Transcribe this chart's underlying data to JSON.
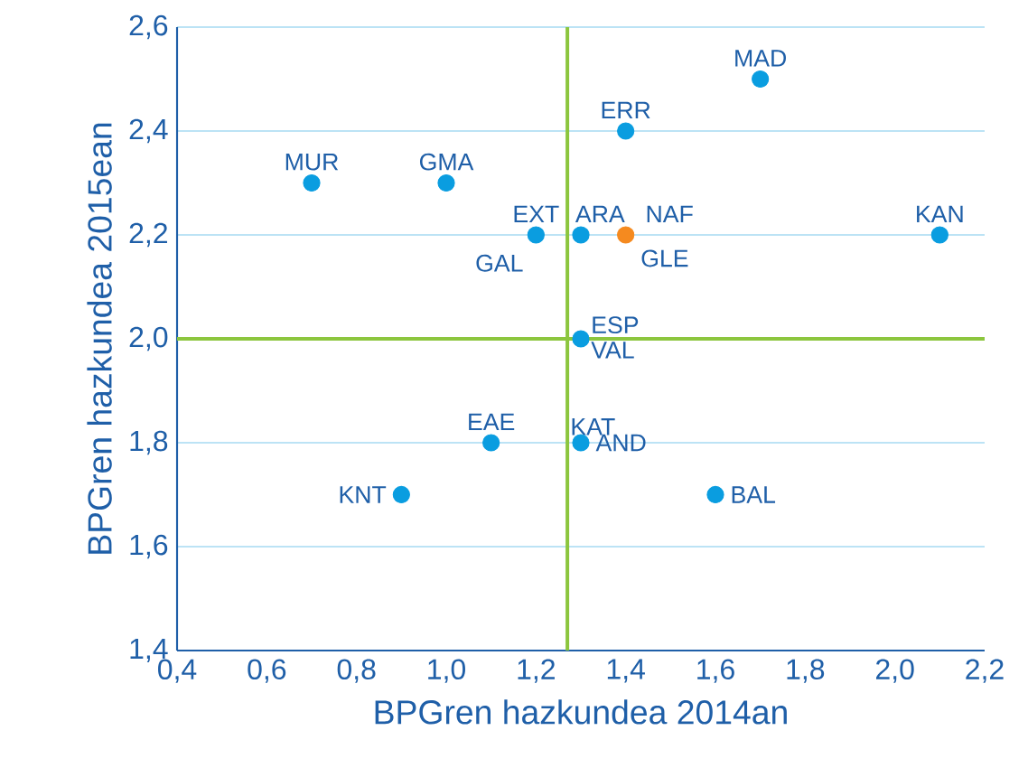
{
  "chart_data": {
    "type": "scatter",
    "xlabel": "BPGren hazkundea 2014an",
    "ylabel": "BPGren hazkundea 2015ean",
    "xlim": [
      0.4,
      2.2
    ],
    "xticks": [
      {
        "value": 0.4,
        "label": "0,4"
      },
      {
        "value": 0.6,
        "label": "0,6"
      },
      {
        "value": 0.8,
        "label": "0,8"
      },
      {
        "value": 1.0,
        "label": "1,0"
      },
      {
        "value": 1.2,
        "label": "1,2"
      },
      {
        "value": 1.4,
        "label": "1,4"
      },
      {
        "value": 1.6,
        "label": "1,6"
      },
      {
        "value": 1.8,
        "label": "1,8"
      },
      {
        "value": 2.0,
        "label": "2,0"
      },
      {
        "value": 2.2,
        "label": "2,2"
      }
    ],
    "ylim": [
      1.4,
      2.6
    ],
    "yticks": [
      {
        "value": 1.4,
        "label": "1,4"
      },
      {
        "value": 1.6,
        "label": "1,6"
      },
      {
        "value": 1.8,
        "label": "1,8"
      },
      {
        "value": 2.0,
        "label": "2,0"
      },
      {
        "value": 2.2,
        "label": "2,2"
      },
      {
        "value": 2.4,
        "label": "2,4"
      },
      {
        "value": 2.6,
        "label": "2,6"
      }
    ],
    "grid": "y",
    "series": [
      {
        "x": [
          0.7,
          1.0,
          1.2,
          1.3,
          1.4,
          1.4,
          1.7,
          2.1,
          1.3,
          1.1,
          1.3,
          0.9,
          1.6
        ],
        "values": [
          2.3,
          2.3,
          2.2,
          2.2,
          2.2,
          2.4,
          2.5,
          2.2,
          2.0,
          1.8,
          1.8,
          1.7,
          1.7
        ],
        "colors": [
          "#0a9de0",
          "#0a9de0",
          "#0a9de0",
          "#0a9de0",
          "#f58a1f",
          "#0a9de0",
          "#0a9de0",
          "#0a9de0",
          "#0a9de0",
          "#0a9de0",
          "#0a9de0",
          "#0a9de0",
          "#0a9de0"
        ]
      }
    ],
    "ref_lines": [
      {
        "axis": "x",
        "value": 1.27,
        "color": "#8cc63e"
      },
      {
        "axis": "y",
        "value": 2.0,
        "color": "#8cc63e"
      }
    ],
    "annotations": [
      {
        "text": "MUR",
        "x": 0.7,
        "y": 2.3
      },
      {
        "text": "GMA",
        "x": 1.0,
        "y": 2.3
      },
      {
        "text": "EXT",
        "x": 1.2,
        "y": 2.2
      },
      {
        "text": "GAL",
        "x": 1.2,
        "y": 2.2
      },
      {
        "text": "ARA",
        "x": 1.3,
        "y": 2.2
      },
      {
        "text": "NAF",
        "x": 1.4,
        "y": 2.2
      },
      {
        "text": "GLE",
        "x": 1.4,
        "y": 2.2
      },
      {
        "text": "ERR",
        "x": 1.4,
        "y": 2.4
      },
      {
        "text": "MAD",
        "x": 1.7,
        "y": 2.5
      },
      {
        "text": "KAN",
        "x": 2.1,
        "y": 2.2
      },
      {
        "text": "ESP",
        "x": 1.3,
        "y": 2.0
      },
      {
        "text": "VAL",
        "x": 1.3,
        "y": 2.0
      },
      {
        "text": "EAE",
        "x": 1.1,
        "y": 1.8
      },
      {
        "text": "KAT",
        "x": 1.3,
        "y": 1.8
      },
      {
        "text": "AND",
        "x": 1.3,
        "y": 1.8
      },
      {
        "text": "KNT",
        "x": 0.9,
        "y": 1.7
      },
      {
        "text": "BAL",
        "x": 1.6,
        "y": 1.7
      }
    ]
  }
}
